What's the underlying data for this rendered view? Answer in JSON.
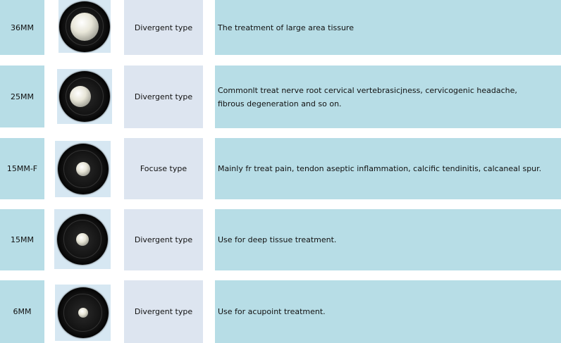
{
  "rows": [
    {
      "size": "36MM",
      "type": "Divergent type",
      "description": "The treatment of large area tissure"
    },
    {
      "size": "25MM",
      "type": "Divergent type",
      "description": "Commonlt treat nerve root cervical vertebrasicjness, cervicogenic headache, fibrous degeneration and so on."
    },
    {
      "size": "15MM-F",
      "type": "Focuse type",
      "description": "Mainly fr treat pain, tendon aseptic inflammation, calcific tendinitis, calcaneal spur."
    },
    {
      "size": "15MM",
      "type": "Divergent type",
      "description": "Use for deep tissue treatment."
    },
    {
      "size": "6MM",
      "type": "Divergent type",
      "description": "Use for acupoint treatment."
    }
  ],
  "colors": {
    "size_cell": "#b7dde6",
    "type_cell": "#dde5f0",
    "description_cell": "#b7dde6"
  }
}
